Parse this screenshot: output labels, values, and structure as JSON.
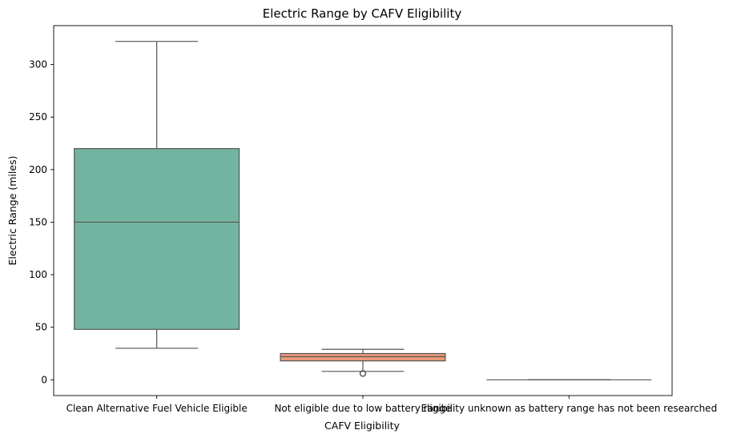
{
  "chart_data": {
    "type": "box",
    "title": "Electric Range by CAFV Eligibility",
    "xlabel": "CAFV Eligibility",
    "ylabel": "Electric Range (miles)",
    "ylim": [
      -15,
      337
    ],
    "yticks": [
      0,
      50,
      100,
      150,
      200,
      250,
      300
    ],
    "grid": false,
    "categories": [
      "Clean Alternative Fuel Vehicle Eligible",
      "Not eligible due to low battery range",
      "Eligibility unknown as battery range has not been researched"
    ],
    "boxes": [
      {
        "category": "Clean Alternative Fuel Vehicle Eligible",
        "whisker_low": 30,
        "q1": 48,
        "median": 150,
        "q3": 220,
        "whisker_high": 322,
        "outliers": [],
        "color": "#73b4a0"
      },
      {
        "category": "Not eligible due to low battery range",
        "whisker_low": 8,
        "q1": 18,
        "median": 22,
        "q3": 25,
        "whisker_high": 29,
        "outliers": [
          6,
          6,
          6
        ],
        "color": "#e99878"
      },
      {
        "category": "Eligibility unknown as battery range has not been researched",
        "whisker_low": 0,
        "q1": 0,
        "median": 0,
        "q3": 0,
        "whisker_high": 0,
        "outliers": [],
        "color": "#8d9fc7"
      }
    ],
    "line_color": "#555555"
  }
}
